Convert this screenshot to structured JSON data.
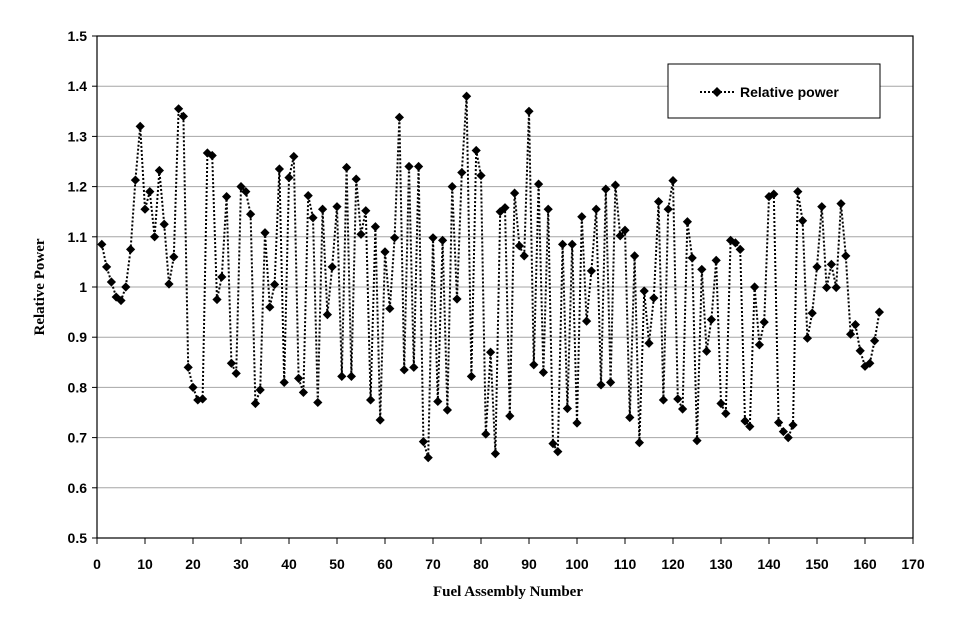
{
  "chart_data": {
    "type": "line",
    "xlabel": "Fuel Assembly Number",
    "ylabel": "Relative Power",
    "xlim": [
      0,
      170
    ],
    "ylim": [
      0.5,
      1.5
    ],
    "xticks": [
      "0",
      "10",
      "20",
      "30",
      "40",
      "50",
      "60",
      "70",
      "80",
      "90",
      "100",
      "110",
      "120",
      "130",
      "140",
      "150",
      "160",
      "170"
    ],
    "yticks": [
      "0.5",
      "0.6",
      "0.7",
      "0.8",
      "0.9",
      "1",
      "1.1",
      "1.2",
      "1.3",
      "1.4",
      "1.5"
    ],
    "grid": "horizontal",
    "legend_position": "top-right",
    "series": [
      {
        "name": "Relative power",
        "color": "#000000",
        "marker": "diamond",
        "line_style": "dotted",
        "x": [
          1,
          2,
          3,
          4,
          5,
          6,
          7,
          8,
          9,
          10,
          11,
          12,
          13,
          14,
          15,
          16,
          17,
          18,
          19,
          20,
          21,
          22,
          23,
          24,
          25,
          26,
          27,
          28,
          29,
          30,
          31,
          32,
          33,
          34,
          35,
          36,
          37,
          38,
          39,
          40,
          41,
          42,
          43,
          44,
          45,
          46,
          47,
          48,
          49,
          50,
          51,
          52,
          53,
          54,
          55,
          56,
          57,
          58,
          59,
          60,
          61,
          62,
          63,
          64,
          65,
          66,
          67,
          68,
          69,
          70,
          71,
          72,
          73,
          74,
          75,
          76,
          77,
          78,
          79,
          80,
          81,
          82,
          83,
          84,
          85,
          86,
          87,
          88,
          89,
          90,
          91,
          92,
          93,
          94,
          95,
          96,
          97,
          98,
          99,
          100,
          101,
          102,
          103,
          104,
          105,
          106,
          107,
          108,
          109,
          110,
          111,
          112,
          113,
          114,
          115,
          116,
          117,
          118,
          119,
          120,
          121,
          122,
          123,
          124,
          125,
          126,
          127,
          128,
          129,
          130,
          131,
          132,
          133,
          134,
          135,
          136,
          137,
          138,
          139,
          140,
          141,
          142,
          143,
          144,
          145,
          146,
          147,
          148,
          149,
          150,
          151,
          152,
          153,
          154,
          155,
          156,
          157,
          158,
          159,
          160,
          161,
          162,
          163
        ],
        "y": [
          1.085,
          1.04,
          1.01,
          0.98,
          0.973,
          1.0,
          1.075,
          1.213,
          1.32,
          1.155,
          1.19,
          1.1,
          1.232,
          1.125,
          1.006,
          1.06,
          1.355,
          1.34,
          0.84,
          0.8,
          0.775,
          0.777,
          1.267,
          1.262,
          0.975,
          1.02,
          1.18,
          0.848,
          0.828,
          1.2,
          1.19,
          1.145,
          0.768,
          0.795,
          1.108,
          0.96,
          1.005,
          1.235,
          0.81,
          1.218,
          1.26,
          0.818,
          0.79,
          1.182,
          1.138,
          0.77,
          1.155,
          0.945,
          1.04,
          1.16,
          0.822,
          1.238,
          0.822,
          1.215,
          1.105,
          1.152,
          0.775,
          1.12,
          0.735,
          1.07,
          0.957,
          1.098,
          1.338,
          0.835,
          1.24,
          0.84,
          1.24,
          0.692,
          0.66,
          1.098,
          0.772,
          1.093,
          0.755,
          1.2,
          0.976,
          1.228,
          1.38,
          0.822,
          1.272,
          1.222,
          0.707,
          0.87,
          0.668,
          1.15,
          1.158,
          0.743,
          1.187,
          1.082,
          1.062,
          1.35,
          0.845,
          1.205,
          0.83,
          1.155,
          0.688,
          0.672,
          1.085,
          0.758,
          1.085,
          0.729,
          1.14,
          0.932,
          1.032,
          1.155,
          0.805,
          1.195,
          0.81,
          1.203,
          1.102,
          1.113,
          0.74,
          1.062,
          0.69,
          0.992,
          0.888,
          0.978,
          1.17,
          0.775,
          1.155,
          1.212,
          0.777,
          0.757,
          1.13,
          1.058,
          0.694,
          1.035,
          0.872,
          0.935,
          1.053,
          0.768,
          0.748,
          1.093,
          1.088,
          1.075,
          0.733,
          0.722,
          1.0,
          0.885,
          0.93,
          1.18,
          1.185,
          0.73,
          0.712,
          0.7,
          0.725,
          1.19,
          1.132,
          0.898,
          0.948,
          1.04,
          1.16,
          0.999,
          1.045,
          0.999,
          1.166,
          1.062,
          0.906,
          0.925,
          0.873,
          0.842,
          0.848,
          0.893,
          0.95
        ]
      }
    ]
  }
}
